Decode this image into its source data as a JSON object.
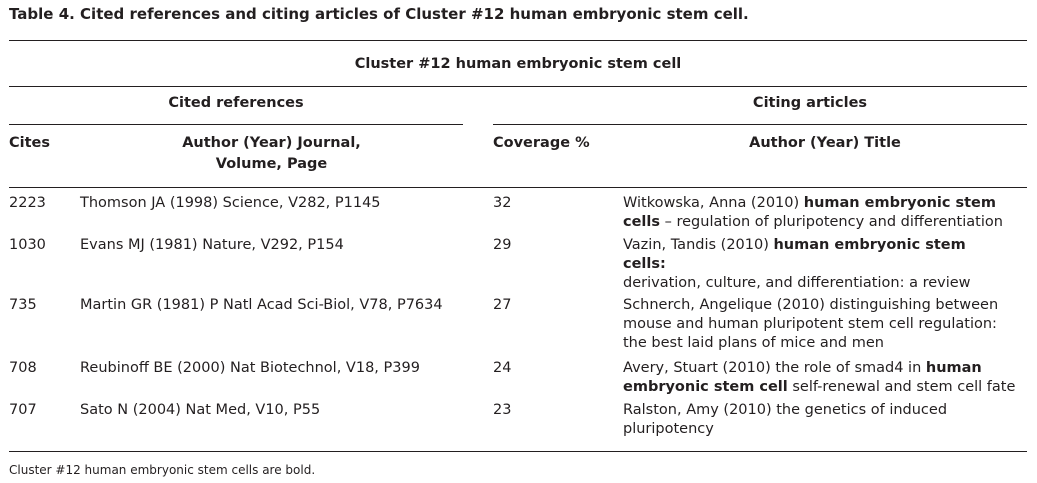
{
  "caption": "Table 4. Cited references and citing articles of Cluster #12 human embryonic stem cell.",
  "cluster_header": "Cluster #12 human embryonic stem cell",
  "groups": {
    "cited": "Cited references",
    "citing": "Citing articles"
  },
  "columns": {
    "cites": "Cites",
    "author_journal_line1": "Author (Year) Journal,",
    "author_journal_line2": "Volume, Page",
    "coverage": "Coverage %",
    "author_title": "Author (Year) Title"
  },
  "rows": [
    {
      "cites": "2223",
      "reference": "Thomson JA (1998) Science, V282, P1145",
      "coverage": "32",
      "article": [
        [
          {
            "t": "Witkowska, Anna (2010) "
          },
          {
            "t": "human embryonic stem",
            "b": true
          }
        ],
        [
          {
            "t": "cells",
            "b": true
          },
          {
            "t": " – regulation of pluripotency and differentiation"
          }
        ]
      ]
    },
    {
      "cites": "1030",
      "reference": "Evans MJ (1981) Nature, V292, P154",
      "coverage": "29",
      "article": [
        [
          {
            "t": "Vazin, Tandis (2010) "
          },
          {
            "t": "human embryonic stem",
            "b": true
          }
        ],
        [
          {
            "t": "cells:",
            "b": true
          }
        ],
        [
          {
            "t": "derivation, culture, and differentiation: a review"
          }
        ]
      ]
    },
    {
      "cites": "735",
      "reference": "Martin GR (1981) P Natl Acad Sci-Biol, V78, P7634",
      "coverage": "27",
      "article": [
        [
          {
            "t": "Schnerch, Angelique (2010) distinguishing between"
          }
        ],
        [
          {
            "t": "mouse and human pluripotent stem cell regulation:"
          }
        ],
        [
          {
            "t": "the best laid plans of mice and men"
          }
        ]
      ]
    },
    {
      "cites": "708",
      "reference": "Reubinoff BE (2000) Nat Biotechnol, V18, P399",
      "coverage": "24",
      "article": [
        [
          {
            "t": "Avery, Stuart (2010) the role of smad4 in "
          },
          {
            "t": "human",
            "b": true
          }
        ],
        [
          {
            "t": "embryonic stem cell",
            "b": true
          },
          {
            "t": " self-renewal and stem cell fate"
          }
        ]
      ]
    },
    {
      "cites": "707",
      "reference": "Sato N (2004) Nat Med, V10, P55",
      "coverage": "23",
      "article": [
        [
          {
            "t": "Ralston, Amy (2010) the genetics of induced"
          }
        ],
        [
          {
            "t": "pluripotency"
          }
        ]
      ]
    }
  ],
  "footnote": "Cluster #12 human embryonic stem cells are bold."
}
